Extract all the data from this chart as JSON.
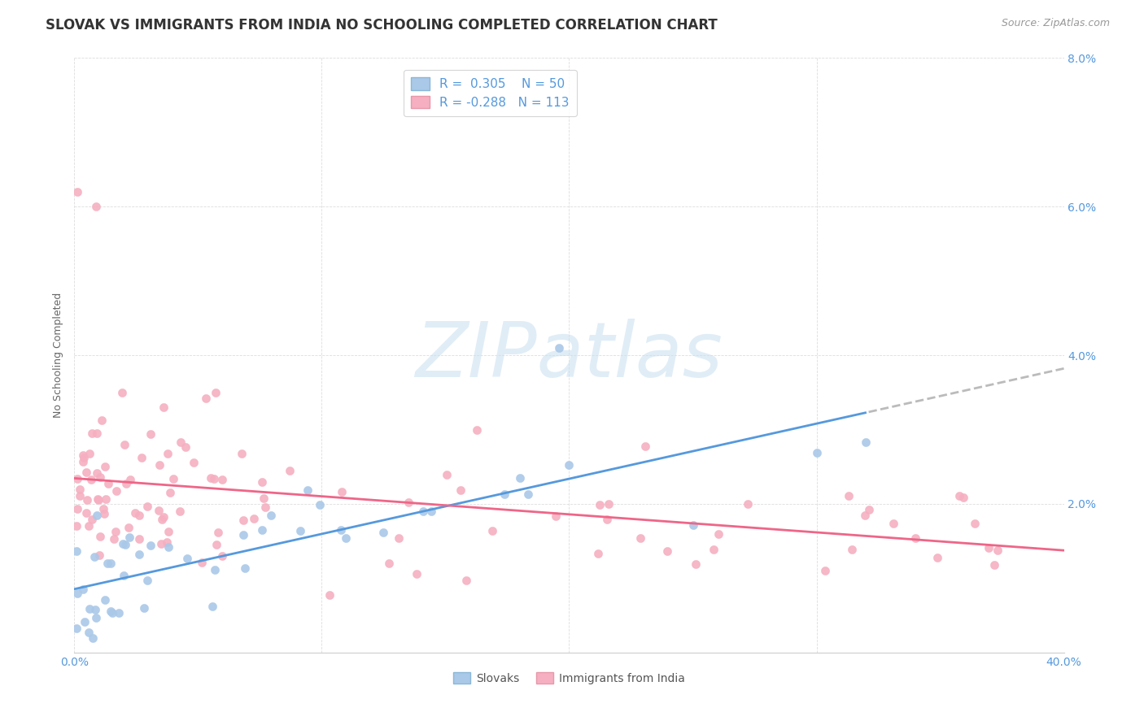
{
  "title": "SLOVAK VS IMMIGRANTS FROM INDIA NO SCHOOLING COMPLETED CORRELATION CHART",
  "source": "Source: ZipAtlas.com",
  "ylabel": "No Schooling Completed",
  "xlim": [
    0.0,
    0.4
  ],
  "ylim": [
    0.0,
    0.08
  ],
  "xticks": [
    0.0,
    0.1,
    0.2,
    0.3,
    0.4
  ],
  "yticks": [
    0.0,
    0.02,
    0.04,
    0.06,
    0.08
  ],
  "xticklabels": [
    "0.0%",
    "",
    "",
    "",
    "40.0%"
  ],
  "yticklabels_right": [
    "",
    "2.0%",
    "4.0%",
    "6.0%",
    "8.0%"
  ],
  "blue_R": 0.305,
  "blue_N": 50,
  "pink_R": -0.288,
  "pink_N": 113,
  "blue_color": "#aac8e8",
  "pink_color": "#f5afc0",
  "blue_line_color": "#5599dd",
  "pink_line_color": "#ee6688",
  "dash_color": "#bbbbbb",
  "watermark_color": "#c8dff0",
  "title_color": "#333333",
  "source_color": "#999999",
  "tick_color_right": "#5599dd",
  "tick_color_bottom": "#5599dd",
  "grid_color": "#dddddd",
  "title_fontsize": 12,
  "axis_label_fontsize": 9,
  "tick_fontsize": 10,
  "legend_fontsize": 11
}
